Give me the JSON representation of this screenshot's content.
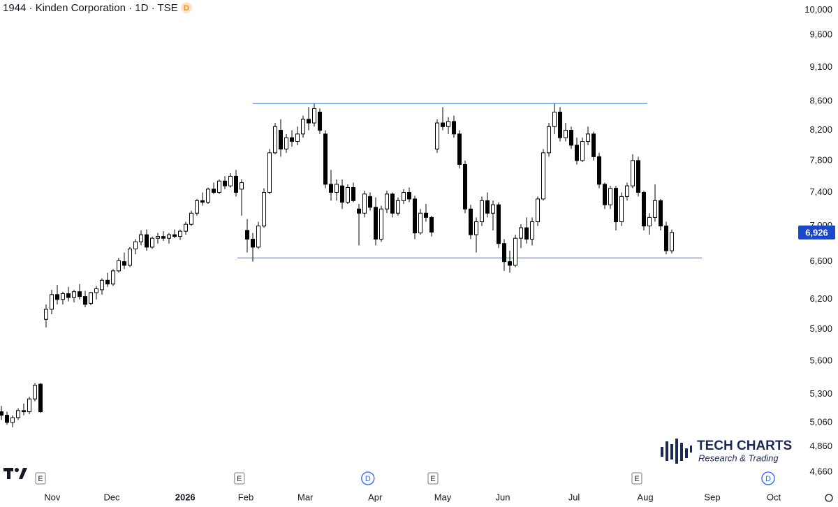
{
  "chart_data": {
    "type": "candlestick",
    "title": "1944 · Kinden Corporation · 1D · TSE",
    "badge": "D",
    "logo_title": "TECH CHARTS",
    "logo_subtitle": "Research & Trading",
    "log_scale": true,
    "up_color": "#ffffff",
    "down_color": "#000000",
    "line_color": "#5b8fd9",
    "open": [
      5150,
      5120,
      5060,
      5100,
      5160,
      5150,
      5260,
      5390,
      6000,
      6100,
      6250,
      6200,
      6260,
      6220,
      6280,
      6230,
      6160,
      6270,
      6300,
      6400,
      6360,
      6500,
      6600,
      6560,
      6740,
      6820,
      6900,
      6760,
      6860,
      6880,
      6860,
      6900,
      6880,
      6940,
      7020,
      7150,
      7300,
      7280,
      7440,
      7400,
      7540,
      7480,
      7600,
      7440,
      6950,
      6850,
      6760,
      7000,
      7400,
      7900,
      8200,
      7950,
      8100,
      8050,
      8150,
      8350,
      8300,
      8450,
      8150,
      7500,
      7400,
      7480,
      7280,
      7460,
      7200,
      7150,
      7350,
      7220,
      6850,
      7200,
      7380,
      7150,
      7300,
      7400,
      7320,
      6920,
      7150,
      7100,
      7950,
      8300,
      8250,
      8320,
      8150,
      7750,
      7200,
      6900,
      7050,
      7300,
      7150,
      7250,
      6800,
      6600,
      6560,
      6860,
      6980,
      6850,
      7050,
      7320,
      7900,
      8250,
      8450,
      8100,
      8200,
      8000,
      7800,
      8050,
      8150,
      7850,
      7500,
      7250,
      7450,
      7050,
      7350,
      7480,
      7800,
      7400,
      7000,
      7100,
      7300,
      7000,
      6720
    ],
    "high": [
      5200,
      5150,
      5120,
      5180,
      5220,
      5280,
      5400,
      5400,
      6150,
      6300,
      6350,
      6280,
      6330,
      6300,
      6360,
      6290,
      6280,
      6340,
      6420,
      6480,
      6520,
      6640,
      6700,
      6760,
      6850,
      6950,
      6960,
      6880,
      6920,
      6940,
      6920,
      6960,
      6960,
      7050,
      7180,
      7320,
      7400,
      7460,
      7520,
      7560,
      7600,
      7640,
      7680,
      7560,
      7080,
      6920,
      7050,
      7450,
      7950,
      8300,
      8350,
      8150,
      8200,
      8250,
      8400,
      8520,
      8570,
      8500,
      8200,
      7680,
      7560,
      7560,
      7500,
      7520,
      7260,
      7420,
      7400,
      7340,
      7240,
      7420,
      7400,
      7340,
      7440,
      7460,
      7360,
      7200,
      7260,
      7120,
      8350,
      8520,
      8380,
      8400,
      8200,
      7800,
      7250,
      7100,
      7350,
      7400,
      7300,
      7280,
      6850,
      6720,
      6900,
      7020,
      7100,
      7100,
      7350,
      7950,
      8300,
      8570,
      8520,
      8300,
      8250,
      8100,
      8100,
      8250,
      8180,
      7900,
      7520,
      7480,
      7480,
      7400,
      7520,
      7880,
      7850,
      7420,
      7150,
      7500,
      7320,
      7050,
      6960
    ],
    "low": [
      5080,
      5040,
      5020,
      5080,
      5120,
      5130,
      5240,
      5140,
      5920,
      6050,
      6150,
      6150,
      6180,
      6170,
      6200,
      6120,
      6140,
      6200,
      6250,
      6330,
      6340,
      6480,
      6520,
      6540,
      6680,
      6780,
      6720,
      6740,
      6800,
      6830,
      6800,
      6860,
      6840,
      6900,
      7000,
      7120,
      7240,
      7260,
      7380,
      7380,
      7440,
      7460,
      7350,
      7120,
      6700,
      6600,
      6740,
      6980,
      7380,
      7880,
      7850,
      7900,
      7980,
      8000,
      8100,
      8200,
      8250,
      8150,
      7450,
      7300,
      7300,
      7200,
      7260,
      7280,
      6780,
      7100,
      7180,
      6780,
      6820,
      7150,
      7100,
      7120,
      7260,
      7280,
      6850,
      6900,
      7050,
      6880,
      7900,
      8200,
      8150,
      8100,
      7700,
      7150,
      6850,
      6700,
      7000,
      7100,
      6950,
      6750,
      6500,
      6480,
      6540,
      6750,
      6800,
      6780,
      7000,
      7300,
      7850,
      8150,
      8050,
      8050,
      7950,
      7750,
      7780,
      8000,
      7800,
      7450,
      7200,
      7200,
      6950,
      7000,
      7300,
      7450,
      7350,
      6950,
      6900,
      7050,
      6950,
      6680,
      6690
    ],
    "close": [
      5120,
      5060,
      5100,
      5160,
      5150,
      5260,
      5380,
      5150,
      6100,
      6250,
      6200,
      6260,
      6220,
      6280,
      6230,
      6150,
      6270,
      6310,
      6400,
      6360,
      6500,
      6610,
      6560,
      6740,
      6820,
      6900,
      6760,
      6860,
      6880,
      6860,
      6900,
      6880,
      6940,
      7020,
      7150,
      7300,
      7280,
      7440,
      7400,
      7540,
      7480,
      7600,
      7400,
      7520,
      6850,
      6760,
      7000,
      7400,
      7900,
      8250,
      7950,
      8100,
      8050,
      8150,
      8350,
      8300,
      8500,
      8200,
      7500,
      7400,
      7500,
      7280,
      7460,
      7300,
      7150,
      7380,
      7220,
      6850,
      7200,
      7380,
      7150,
      7300,
      7400,
      7320,
      6920,
      7150,
      7100,
      6930,
      8300,
      8250,
      8320,
      8150,
      7750,
      7200,
      6900,
      7050,
      7300,
      7150,
      7250,
      6800,
      6600,
      6560,
      6860,
      6980,
      6850,
      7050,
      7320,
      7900,
      8250,
      8450,
      8100,
      8200,
      8000,
      7800,
      8050,
      8150,
      7850,
      7500,
      7250,
      7450,
      7050,
      7350,
      7480,
      7800,
      7400,
      7000,
      7100,
      7300,
      7000,
      6720,
      6926
    ],
    "hlines": [
      8570,
      6640
    ],
    "last_price": {
      "value": 6926,
      "label": "6,926"
    },
    "xlim": [
      -0.25,
      142.25
    ],
    "xticks": [
      {
        "value": 9.1,
        "label": "Nov"
      },
      {
        "value": 19.75,
        "label": "Dec"
      },
      {
        "value": 32.9,
        "label": "2026"
      },
      {
        "value": 43.75,
        "label": "Feb"
      },
      {
        "value": 54.4,
        "label": "Mar"
      },
      {
        "value": 66.9,
        "label": "Apr"
      },
      {
        "value": 79,
        "label": "May"
      },
      {
        "value": 89.75,
        "label": "Jun"
      },
      {
        "value": 102.5,
        "label": "Jul"
      },
      {
        "value": 115.25,
        "label": "Aug"
      },
      {
        "value": 127.25,
        "label": "Sep"
      },
      {
        "value": 138.25,
        "label": "Oct"
      }
    ],
    "events": [
      {
        "value": 7,
        "label": "E"
      },
      {
        "value": 42.6,
        "label": "E"
      },
      {
        "value": 65.6,
        "label": "D"
      },
      {
        "value": 77.25,
        "label": "E"
      },
      {
        "value": 113.75,
        "label": "E"
      },
      {
        "value": 137.25,
        "label": "D"
      }
    ],
    "ylim": [
      4560,
      10170
    ],
    "yticks": [
      {
        "value": 4660,
        "label": "4,660"
      },
      {
        "value": 4860,
        "label": "4,860"
      },
      {
        "value": 5060,
        "label": "5,060"
      },
      {
        "value": 5300,
        "label": "5,300"
      },
      {
        "value": 5600,
        "label": "5,600"
      },
      {
        "value": 5900,
        "label": "5,900"
      },
      {
        "value": 6200,
        "label": "6,200"
      },
      {
        "value": 6600,
        "label": "6,600"
      },
      {
        "value": 7000,
        "label": "7,000"
      },
      {
        "value": 7400,
        "label": "7,400"
      },
      {
        "value": 7800,
        "label": "7,800"
      },
      {
        "value": 8200,
        "label": "8,200"
      },
      {
        "value": 8600,
        "label": "8,600"
      },
      {
        "value": 9100,
        "label": "9,100"
      },
      {
        "value": 9600,
        "label": "9,600"
      },
      {
        "value": 10000,
        "label": "10,000"
      }
    ]
  }
}
